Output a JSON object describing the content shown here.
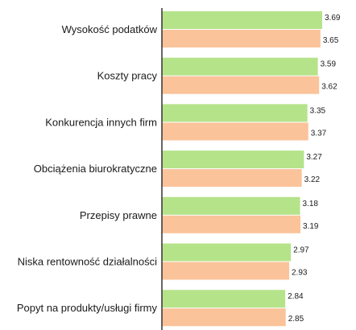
{
  "chart_data": {
    "type": "bar",
    "orientation": "horizontal",
    "categories": [
      "Wysokość podatków",
      "Koszty pracy",
      "Konkurencja innych firm",
      "Obciążenia biurokratyczne",
      "Przepisy prawne",
      "Niska rentowność działalności",
      "Popyt na produkty/usługi firmy"
    ],
    "series": [
      {
        "values": [
          3.69,
          3.59,
          3.35,
          3.27,
          3.18,
          2.97,
          2.84
        ],
        "color": "#b5e38a"
      },
      {
        "values": [
          3.65,
          3.62,
          3.37,
          3.22,
          3.19,
          2.93,
          2.85
        ],
        "color": "#fbc39a"
      }
    ],
    "value_labels": [
      [
        "3.69",
        "3.59",
        "3.35",
        "3.27",
        "3.18",
        "2.97",
        "2.84"
      ],
      [
        "3.65",
        "3.62",
        "3.37",
        "3.22",
        "3.19",
        "2.93",
        "2.85"
      ]
    ],
    "xlim": [
      0,
      3.69
    ],
    "grid": false,
    "legend": "none",
    "title": "",
    "xlabel": "",
    "ylabel": ""
  }
}
